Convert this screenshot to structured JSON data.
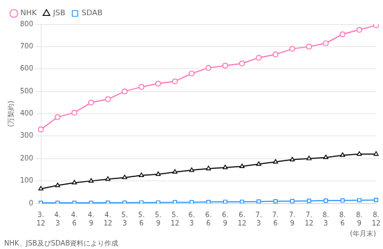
{
  "chart_data": {
    "type": "line",
    "xlabel": "(年月末)",
    "ylabel": "(万契約)",
    "annotations": [
      "NHK、JSB及びSDAB資料により作成"
    ],
    "categories": [
      [
        "3.",
        "12"
      ],
      [
        "4.",
        "3"
      ],
      [
        "4.",
        "6"
      ],
      [
        "4.",
        "9"
      ],
      [
        "4.",
        "12"
      ],
      [
        "5.",
        "3"
      ],
      [
        "5.",
        "6"
      ],
      [
        "5.",
        "9"
      ],
      [
        "5.",
        "12"
      ],
      [
        "6.",
        "3"
      ],
      [
        "6.",
        "6"
      ],
      [
        "6.",
        "9"
      ],
      [
        "6.",
        "12"
      ],
      [
        "7.",
        "3"
      ],
      [
        "7.",
        "6"
      ],
      [
        "7.",
        "9"
      ],
      [
        "7.",
        "12"
      ],
      [
        "8.",
        "3"
      ],
      [
        "8.",
        "6"
      ],
      [
        "8.",
        "9"
      ],
      [
        "8.",
        "12"
      ]
    ],
    "series": [
      {
        "name": "NHK",
        "color": "#ff69b4",
        "marker": "circle",
        "values": [
          330,
          385,
          405,
          450,
          465,
          500,
          520,
          535,
          545,
          580,
          605,
          615,
          625,
          650,
          665,
          690,
          700,
          715,
          755,
          775,
          795
        ]
      },
      {
        "name": "JSB",
        "color": "#000000",
        "marker": "triangle",
        "values": [
          65,
          80,
          92,
          100,
          108,
          115,
          125,
          130,
          140,
          148,
          155,
          160,
          165,
          175,
          185,
          195,
          200,
          205,
          215,
          220,
          220
        ]
      },
      {
        "name": "SDAB",
        "color": "#1e90ff",
        "marker": "square",
        "values": [
          2,
          2,
          2,
          2,
          3,
          3,
          4,
          4,
          5,
          5,
          6,
          7,
          7,
          8,
          9,
          10,
          11,
          12,
          13,
          14,
          15
        ]
      }
    ],
    "ylim": [
      0,
      800
    ],
    "yticks": [
      0,
      100,
      200,
      300,
      400,
      500,
      600,
      700,
      800
    ],
    "grid": "y",
    "legend": "upper left"
  }
}
